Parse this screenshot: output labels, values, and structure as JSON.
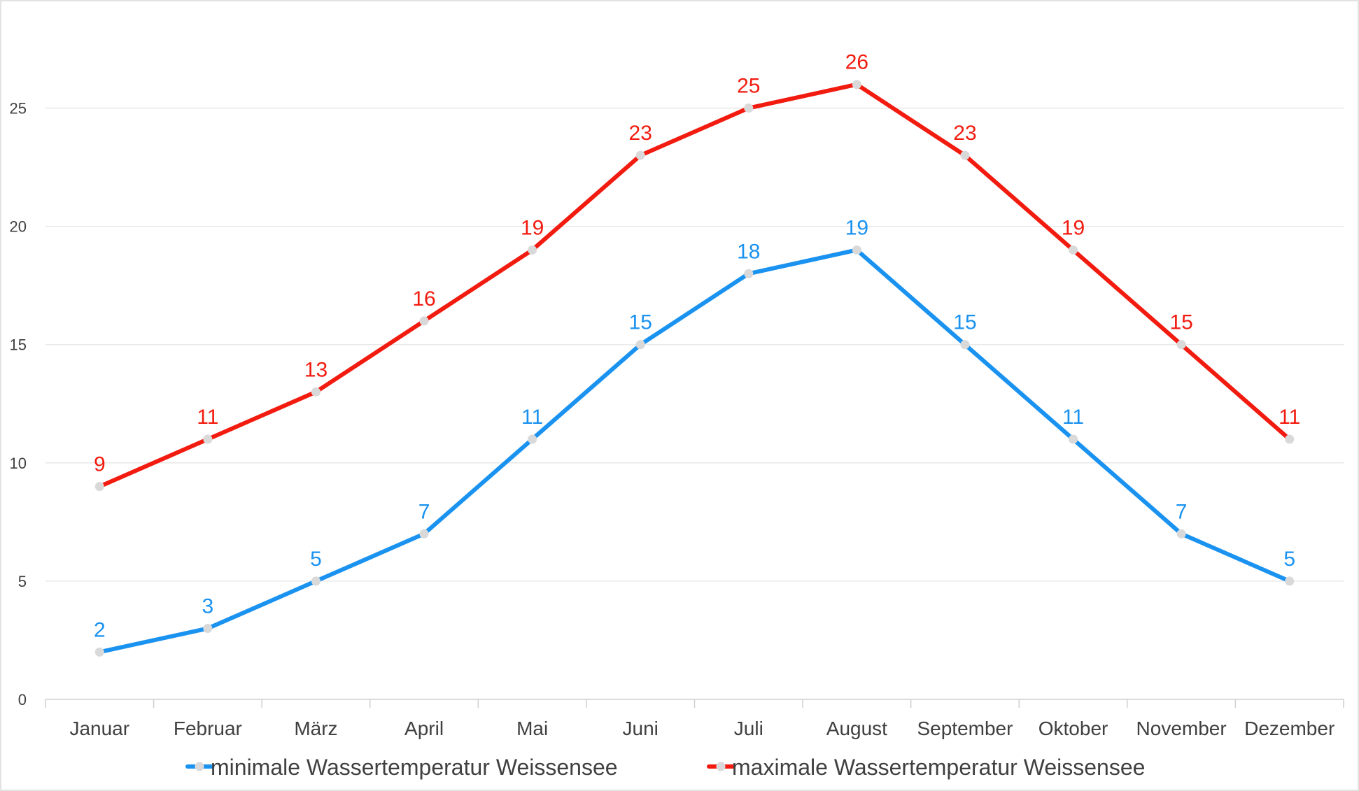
{
  "chart_data": {
    "type": "line",
    "categories": [
      "Januar",
      "Februar",
      "März",
      "April",
      "Mai",
      "Juni",
      "Juli",
      "August",
      "September",
      "Oktober",
      "November",
      "Dezember"
    ],
    "ylim": [
      0,
      27.5
    ],
    "yticks": [
      0,
      5,
      10,
      15,
      20,
      25
    ],
    "grid": true,
    "legend_position": "bottom",
    "series": [
      {
        "name": "minimale Wassertemperatur Weissensee",
        "color": "#1a92f0",
        "values": [
          2,
          3,
          5,
          7,
          11,
          15,
          18,
          19,
          15,
          11,
          7,
          5
        ]
      },
      {
        "name": "maximale Wassertemperatur Weissensee",
        "color": "#f21b0f",
        "values": [
          9,
          11,
          13,
          16,
          19,
          23,
          25,
          26,
          23,
          19,
          15,
          11
        ]
      }
    ],
    "marker_color": "#d9d9d9"
  }
}
